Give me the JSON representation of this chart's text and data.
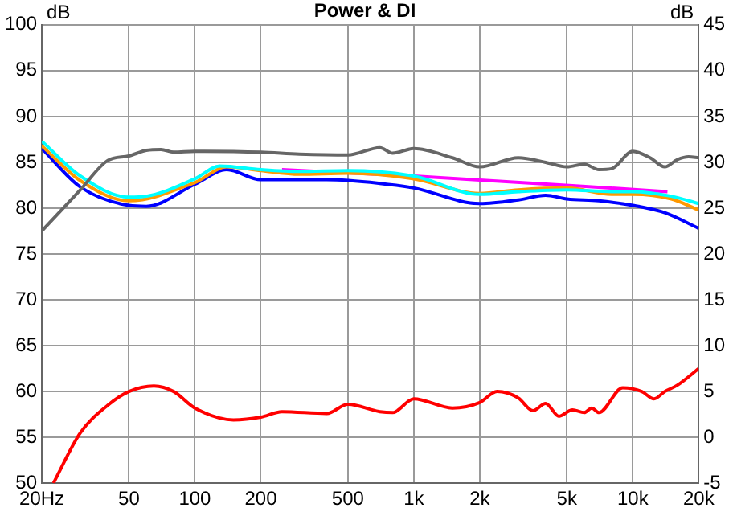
{
  "chart_data": {
    "type": "line",
    "title": "Power & DI",
    "ylabel": "dB",
    "y2label": "dB",
    "log": "x",
    "grid": true,
    "legend": false,
    "marker": "none",
    "line_style": "solid",
    "xlim": [
      20,
      20000
    ],
    "xticks": [
      {
        "value": 20,
        "label": "20Hz"
      },
      50,
      100,
      200,
      500,
      {
        "value": 1000,
        "label": "1k"
      },
      {
        "value": 2000,
        "label": "2k"
      },
      {
        "value": 5000,
        "label": "5k"
      },
      {
        "value": 10000,
        "label": "10k"
      },
      {
        "value": 20000,
        "label": "20k"
      }
    ],
    "ylim": [
      50,
      100
    ],
    "yticks": [
      50,
      55,
      60,
      65,
      70,
      75,
      80,
      85,
      90,
      95,
      100
    ],
    "y2lim": [
      -5,
      45
    ],
    "y2ticks": [
      -5,
      0,
      5,
      10,
      15,
      20,
      25,
      30,
      35,
      40,
      45
    ],
    "series": [
      {
        "color": "#ff0000",
        "axis": "y2",
        "x": [
          22.6,
          30,
          40,
          50,
          65,
          80,
          100,
          150,
          200,
          250,
          400,
          500,
          700,
          800,
          1000,
          1500,
          2000,
          2400,
          3000,
          3500,
          4000,
          4600,
          5300,
          6000,
          6500,
          7000,
          9000,
          11000,
          12500,
          14000,
          16000,
          20000
        ],
        "values": [
          -5,
          0.5,
          3.5,
          5,
          5.6,
          5,
          3.2,
          1.9,
          2.2,
          2.8,
          2.6,
          3.6,
          2.8,
          2.7,
          4.2,
          3.2,
          3.8,
          5,
          4.3,
          2.9,
          3.7,
          2.3,
          3,
          2.7,
          3.2,
          2.7,
          5.4,
          5,
          4.2,
          5,
          5.7,
          7.5
        ]
      },
      {
        "color": "#666666",
        "x": [
          20,
          30,
          40,
          50,
          60,
          70,
          80,
          100,
          200,
          300,
          500,
          700,
          800,
          1000,
          1500,
          2000,
          3000,
          4000,
          5000,
          6000,
          7000,
          8000,
          10000,
          12000,
          14000,
          16000,
          18000,
          20000
        ],
        "values": [
          77.5,
          82,
          85.2,
          85.7,
          86.3,
          86.4,
          86.1,
          86.2,
          86.1,
          85.9,
          85.8,
          86.6,
          86,
          86.5,
          85.5,
          84.5,
          85.5,
          85,
          84.5,
          84.8,
          84.2,
          84.3,
          86.2,
          85.5,
          84.5,
          85.3,
          85.6,
          85.5
        ]
      },
      {
        "color": "#00ffff",
        "x": [
          20,
          30,
          50,
          60,
          100,
          130,
          200,
          300,
          500,
          1000,
          2000,
          3000,
          5000,
          8000,
          10000,
          15000,
          20000
        ],
        "values": [
          87.3,
          83.5,
          81.2,
          81.3,
          83.2,
          84.6,
          84.2,
          84,
          84.1,
          83.5,
          81.5,
          81.8,
          82,
          81.8,
          81.8,
          81.3,
          80.5
        ]
      },
      {
        "color": "#ff9900",
        "x": [
          20,
          30,
          50,
          100,
          140,
          200,
          300,
          500,
          1000,
          2000,
          3000,
          5000,
          8000,
          10000,
          15000,
          20000
        ],
        "values": [
          86.8,
          83,
          80.8,
          82.8,
          84.5,
          84.1,
          83.7,
          83.8,
          83.2,
          81.6,
          82,
          82.2,
          81.5,
          81.5,
          81,
          79.8
        ]
      },
      {
        "color": "#ff00ff",
        "x": [
          250,
          1000,
          14400
        ],
        "values": [
          84.2,
          83.5,
          81.8
        ]
      },
      {
        "color": "#0000ff",
        "x": [
          20,
          30,
          50,
          60,
          100,
          140,
          200,
          400,
          700,
          1000,
          2000,
          3000,
          4000,
          5000,
          7000,
          10000,
          14000,
          20000
        ],
        "values": [
          86.5,
          82.3,
          80.3,
          80.2,
          82.6,
          84.2,
          83.1,
          83.1,
          82.7,
          82.2,
          80.5,
          80.9,
          81.4,
          81,
          80.8,
          80.3,
          79.5,
          77.8
        ]
      }
    ]
  }
}
